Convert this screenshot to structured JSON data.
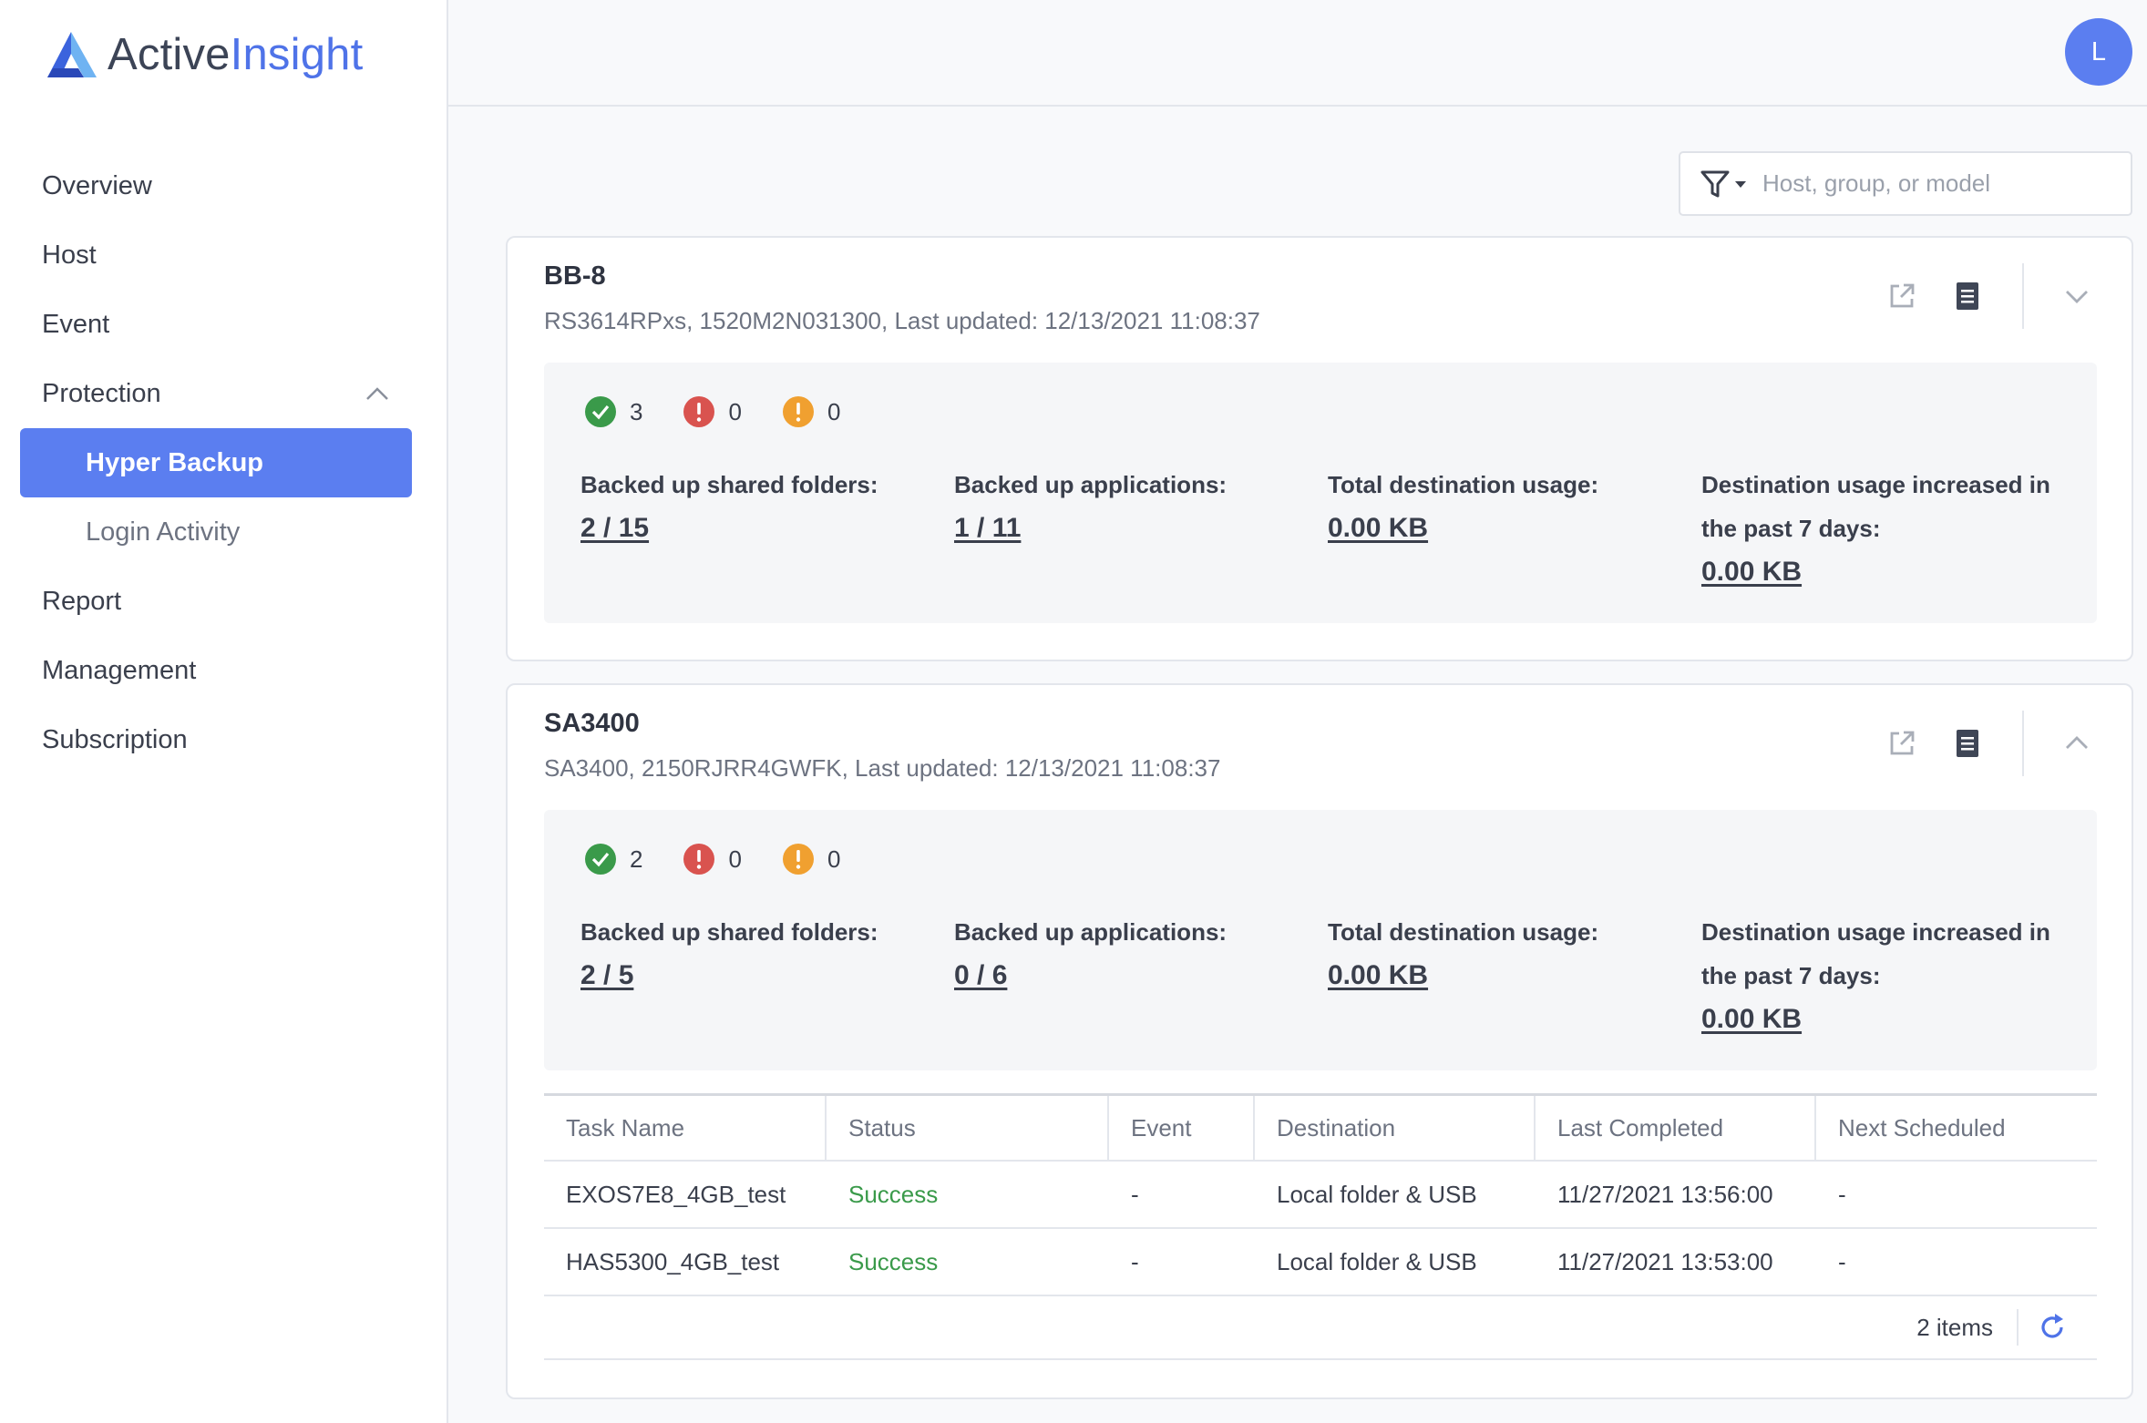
{
  "brand": {
    "name_part1": "Active",
    "name_part2": "Insight",
    "logo_icon": "activeinsight-logo-icon",
    "accent": "#5b7ef0"
  },
  "sidebar": {
    "items": [
      {
        "label": "Overview"
      },
      {
        "label": "Host"
      },
      {
        "label": "Event"
      },
      {
        "label": "Protection",
        "expanded": true
      },
      {
        "label": "Hyper Backup",
        "active": true
      },
      {
        "label": "Login Activity"
      },
      {
        "label": "Report"
      },
      {
        "label": "Management"
      },
      {
        "label": "Subscription"
      }
    ]
  },
  "header": {
    "avatar_initial": "L"
  },
  "search": {
    "placeholder": "Host, group, or model",
    "value": ""
  },
  "cards": [
    {
      "title": "BB-8",
      "subtitle": "RS3614RPxs, 1520M2N031300, Last updated: 12/13/2021 11:08:37",
      "expanded": false,
      "counts": {
        "success": "3",
        "error": "0",
        "warning": "0"
      },
      "metrics": [
        {
          "label": "Backed up shared folders:",
          "value": "2 / 15"
        },
        {
          "label": "Backed up applications:",
          "value": "1 / 11"
        },
        {
          "label": "Total destination usage:",
          "value": "0.00 KB"
        },
        {
          "label": "Destination usage increased in the past 7 days:",
          "value": "0.00 KB"
        }
      ]
    },
    {
      "title": "SA3400",
      "subtitle": "SA3400, 2150RJRR4GWFK, Last updated: 12/13/2021 11:08:37",
      "expanded": true,
      "counts": {
        "success": "2",
        "error": "0",
        "warning": "0"
      },
      "metrics": [
        {
          "label": "Backed up shared folders:",
          "value": "2 / 5"
        },
        {
          "label": "Backed up applications:",
          "value": "0 / 6"
        },
        {
          "label": "Total destination usage:",
          "value": "0.00 KB"
        },
        {
          "label": "Destination usage increased in the past 7 days:",
          "value": "0.00 KB"
        }
      ],
      "table": {
        "columns": [
          "Task Name",
          "Status",
          "Event",
          "Destination",
          "Last Completed",
          "Next Scheduled"
        ],
        "rows": [
          [
            "EXOS7E8_4GB_test",
            "Success",
            "-",
            "Local folder & USB",
            "11/27/2021 13:56:00",
            "-"
          ],
          [
            "HAS5300_4GB_test",
            "Success",
            "-",
            "Local folder & USB",
            "11/27/2021 13:53:00",
            "-"
          ]
        ],
        "footer": "2 items"
      }
    }
  ],
  "colors": {
    "success": "#3a9a4a",
    "error": "#d9534f",
    "warning": "#f0a030"
  }
}
